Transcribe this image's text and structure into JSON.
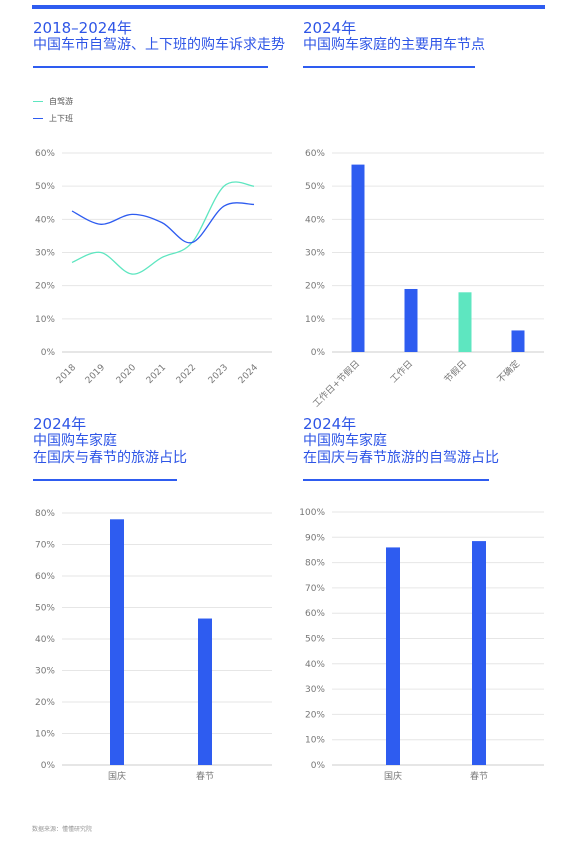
{
  "titles": {
    "tl": {
      "line1": "2018–2024年",
      "line2": "中国车市自驾游、上下班的购车诉求走势"
    },
    "tr": {
      "line1": "2024年",
      "line2": "中国购车家庭的主要用车节点"
    },
    "bl": {
      "line1": "2024年",
      "line2": "中国购车家庭",
      "line3": "在国庆与春节的旅游占比"
    },
    "br": {
      "line1": "2024年",
      "line2": "中国购车家庭",
      "line3": "在国庆与春节旅游的自驾游占比"
    }
  },
  "colors": {
    "blue": "#2e5cf0",
    "green": "#5ee6c0",
    "grid": "#e6e6e6",
    "tick": "#777777"
  },
  "source": "数据来源：懂懂研究院",
  "chart_data": [
    {
      "id": "tl",
      "type": "line",
      "x": [
        "2018",
        "2019",
        "2020",
        "2021",
        "2022",
        "2023",
        "2024"
      ],
      "series": [
        {
          "name": "自驾游",
          "color": "#5ee6c0",
          "values": [
            27,
            30,
            23.5,
            28.5,
            33,
            50,
            50
          ]
        },
        {
          "name": "上下班",
          "color": "#2e5cf0",
          "values": [
            42.5,
            38.5,
            41.5,
            39,
            33,
            44,
            44.5
          ]
        }
      ],
      "ylim": [
        0,
        60
      ],
      "yticks": [
        "0%",
        "10%",
        "20%",
        "30%",
        "40%",
        "50%",
        "60%"
      ],
      "legend": "top-left",
      "grid": true
    },
    {
      "id": "tr",
      "type": "bar",
      "categories": [
        "工作日+节假日",
        "工作日",
        "节假日",
        "不确定"
      ],
      "values": [
        56.5,
        19,
        18,
        6.5
      ],
      "colors": [
        "#2e5cf0",
        "#2e5cf0",
        "#5ee6c0",
        "#2e5cf0"
      ],
      "ylim": [
        0,
        60
      ],
      "yticks": [
        "0%",
        "10%",
        "20%",
        "30%",
        "40%",
        "50%",
        "60%"
      ],
      "grid": true
    },
    {
      "id": "bl",
      "type": "bar",
      "categories": [
        "国庆",
        "春节"
      ],
      "values": [
        78,
        46.5
      ],
      "ylim": [
        0,
        80
      ],
      "yticks": [
        "0%",
        "10%",
        "20%",
        "30%",
        "40%",
        "50%",
        "60%",
        "70%",
        "80%"
      ],
      "grid": true
    },
    {
      "id": "br",
      "type": "bar",
      "categories": [
        "国庆",
        "春节"
      ],
      "values": [
        86,
        88.5
      ],
      "ylim": [
        0,
        100
      ],
      "yticks": [
        "0%",
        "10%",
        "20%",
        "30%",
        "40%",
        "50%",
        "60%",
        "70%",
        "80%",
        "90%",
        "100%"
      ],
      "grid": true
    }
  ]
}
